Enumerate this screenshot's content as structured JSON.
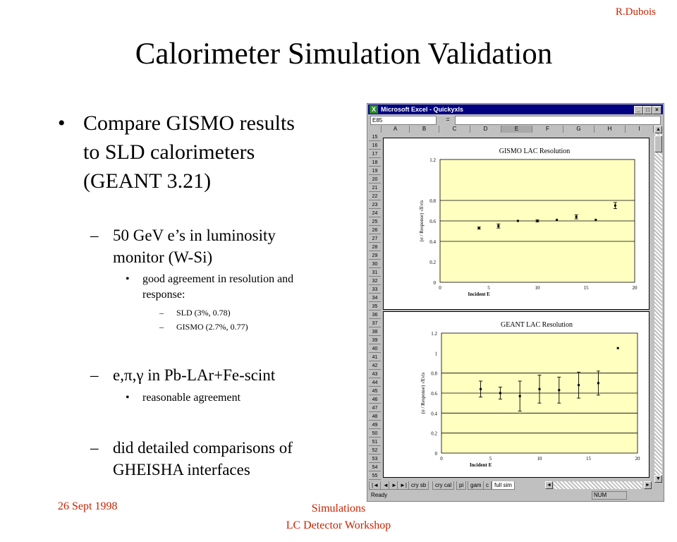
{
  "slide": {
    "author": "R.Dubois",
    "title": "Calorimeter Simulation Validation",
    "bullets": {
      "main": [
        "Compare GISMO results",
        "to SLD calorimeters",
        "(GEANT 3.21)"
      ],
      "sub1": [
        "50 GeV e’s in luminosity",
        "monitor (W-Si)"
      ],
      "sub1_detail": [
        "good agreement in resolution and",
        "response:"
      ],
      "sub1_items": [
        "SLD (3%, 0.78)",
        "GISMO (2.7%, 0.77)"
      ],
      "sub2": "e,π,γ in Pb-LAr+Fe-scint",
      "sub2_detail": "reasonable agreement",
      "sub3": [
        "did detailed comparisons of",
        "GHEISHA interfaces"
      ]
    },
    "markers": {
      "bullet": "•",
      "dash": "–"
    },
    "footer": {
      "date": "26 Sept 1998",
      "event_line1": "Simulations",
      "event_line2": "LC Detector Workshop"
    }
  },
  "excel": {
    "window_title": "Microsoft Excel - Quickyxls",
    "window_buttons": [
      "_",
      "□",
      "×"
    ],
    "name_box": "E85",
    "formula_eq": "=",
    "columns": [
      "A",
      "B",
      "C",
      "D",
      "E",
      "F",
      "G",
      "H",
      "I"
    ],
    "active_column": "E",
    "rows": [
      "15",
      "16",
      "17",
      "18",
      "19",
      "20",
      "21",
      "22",
      "23",
      "24",
      "25",
      "26",
      "27",
      "28",
      "29",
      "30",
      "31",
      "32",
      "33",
      "34",
      "35",
      "36",
      "37",
      "38",
      "39",
      "40",
      "41",
      "42",
      "43",
      "44",
      "45",
      "46",
      "47",
      "48",
      "49",
      "50",
      "51",
      "52",
      "53",
      "54",
      "55"
    ],
    "sheet_tabs": [
      "cry sb",
      "cry cal",
      "pi",
      "gam",
      "c",
      "full sim"
    ],
    "active_tab": "full sim",
    "tab_nav": [
      "|◄",
      "◄",
      "►",
      "►|"
    ],
    "status_left": "Ready",
    "status_num": "NUM"
  },
  "chart_data": [
    {
      "type": "scatter",
      "title": "GISMO LAC Resolution",
      "xlabel": "Incident E",
      "ylabel": "(σ / Response) √Evis",
      "xlim": [
        0,
        20
      ],
      "ylim": [
        0,
        1.2
      ],
      "xticks": [
        0,
        5,
        10,
        15,
        20
      ],
      "yticks": [
        0,
        0.2,
        0.4,
        0.6,
        0.8,
        1,
        1.2
      ],
      "ytick_labels": [
        "0",
        "0.2",
        "0.4",
        "0.6",
        "0.8",
        "",
        "1.2"
      ],
      "x": [
        4,
        6,
        8,
        10,
        12,
        14,
        16,
        18
      ],
      "y": [
        0.53,
        0.55,
        0.6,
        0.6,
        0.61,
        0.64,
        0.61,
        0.75
      ],
      "yerr": [
        0.01,
        0.02,
        0.0,
        0.01,
        0.0,
        0.02,
        0.0,
        0.03
      ],
      "plot_bg": "#ffffc0",
      "gridlines_y": [
        0.4,
        0.6,
        0.8
      ]
    },
    {
      "type": "scatter",
      "title": "GEANT LAC Resolution",
      "xlabel": "Incident E",
      "ylabel": "(σ / Response) √Evis",
      "xlim": [
        0,
        20
      ],
      "ylim": [
        0,
        1.2
      ],
      "xticks": [
        0,
        5,
        10,
        15,
        20
      ],
      "yticks": [
        0,
        0.2,
        0.4,
        0.6,
        0.8,
        1,
        1.2
      ],
      "ytick_labels": [
        "0",
        "0.2",
        "0.4",
        "0.6",
        "0.8",
        "1",
        "1.2"
      ],
      "x": [
        4,
        6,
        8,
        10,
        12,
        14,
        16,
        18
      ],
      "y": [
        0.64,
        0.6,
        0.57,
        0.64,
        0.63,
        0.68,
        0.7,
        1.05
      ],
      "yerr": [
        0.08,
        0.06,
        0.15,
        0.14,
        0.13,
        0.13,
        0.12,
        0.0
      ],
      "plot_bg": "#ffffc0",
      "gridlines_y": [
        0.2,
        0.4,
        0.6,
        0.8
      ]
    }
  ]
}
